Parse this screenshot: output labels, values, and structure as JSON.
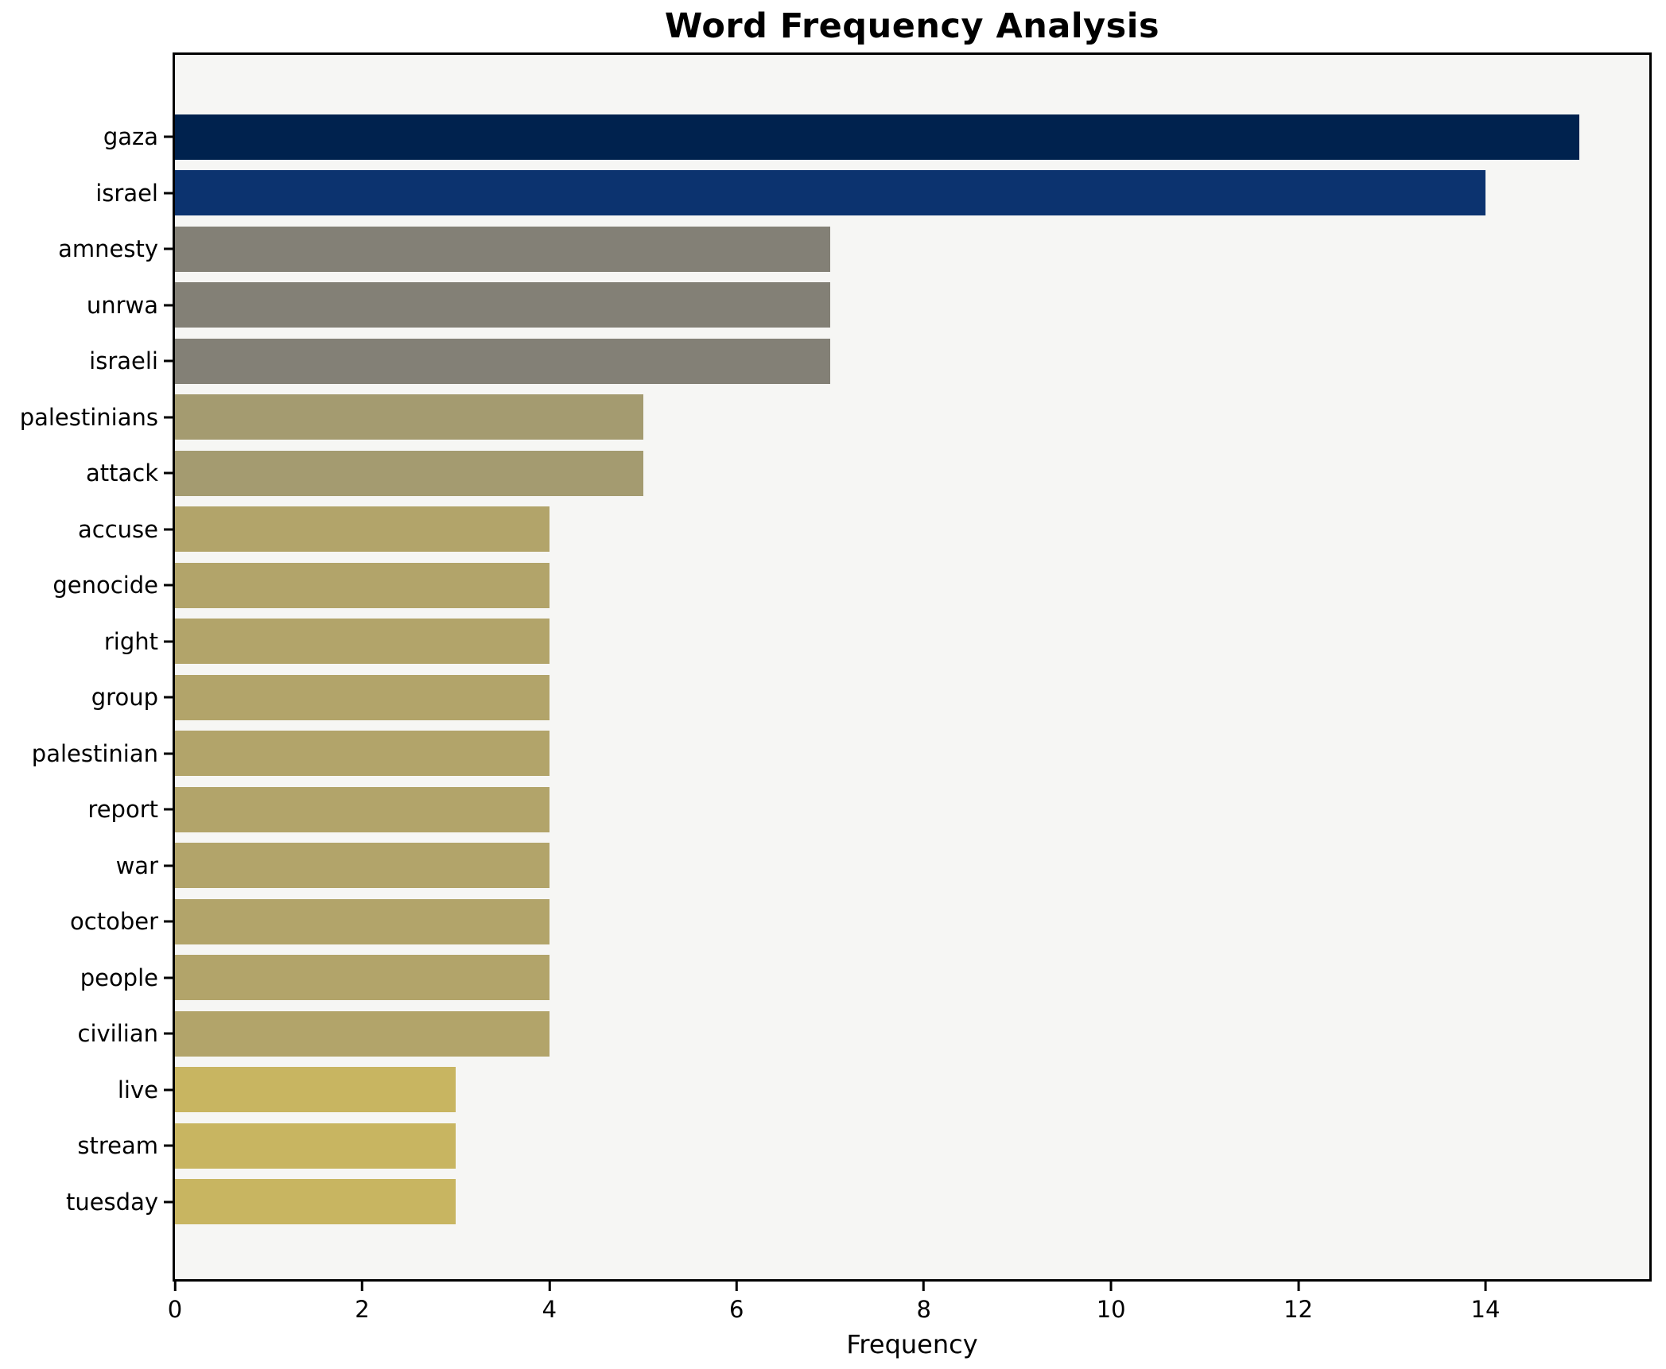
{
  "chart_data": {
    "type": "bar",
    "orientation": "horizontal",
    "title": "Word Frequency Analysis",
    "xlabel": "Frequency",
    "ylabel": "",
    "categories": [
      "gaza",
      "israel",
      "amnesty",
      "unrwa",
      "israeli",
      "palestinians",
      "attack",
      "accuse",
      "genocide",
      "right",
      "group",
      "palestinian",
      "report",
      "war",
      "october",
      "people",
      "civilian",
      "live",
      "stream",
      "tuesday"
    ],
    "values": [
      15,
      14,
      7,
      7,
      7,
      5,
      5,
      4,
      4,
      4,
      4,
      4,
      4,
      4,
      4,
      4,
      4,
      3,
      3,
      3
    ],
    "bar_colors": [
      "#00224e",
      "#0c336f",
      "#838076",
      "#838076",
      "#838076",
      "#a49b70",
      "#a49b70",
      "#b2a46a",
      "#b2a46a",
      "#b2a46a",
      "#b2a46a",
      "#b2a46a",
      "#b2a46a",
      "#b2a46a",
      "#b2a46a",
      "#b2a46a",
      "#b2a46a",
      "#c8b561",
      "#c8b561",
      "#c8b561"
    ],
    "xlim": [
      0,
      15.75
    ],
    "xticks": [
      0,
      2,
      4,
      6,
      8,
      10,
      12,
      14
    ],
    "xtick_labels": [
      "0",
      "2",
      "4",
      "6",
      "8",
      "10",
      "12",
      "14"
    ],
    "grid": false,
    "legend": null,
    "colors": {
      "plot_background": "#f6f6f4",
      "figure_background": "#ffffff",
      "spine": "#000000",
      "text": "#000000"
    }
  }
}
